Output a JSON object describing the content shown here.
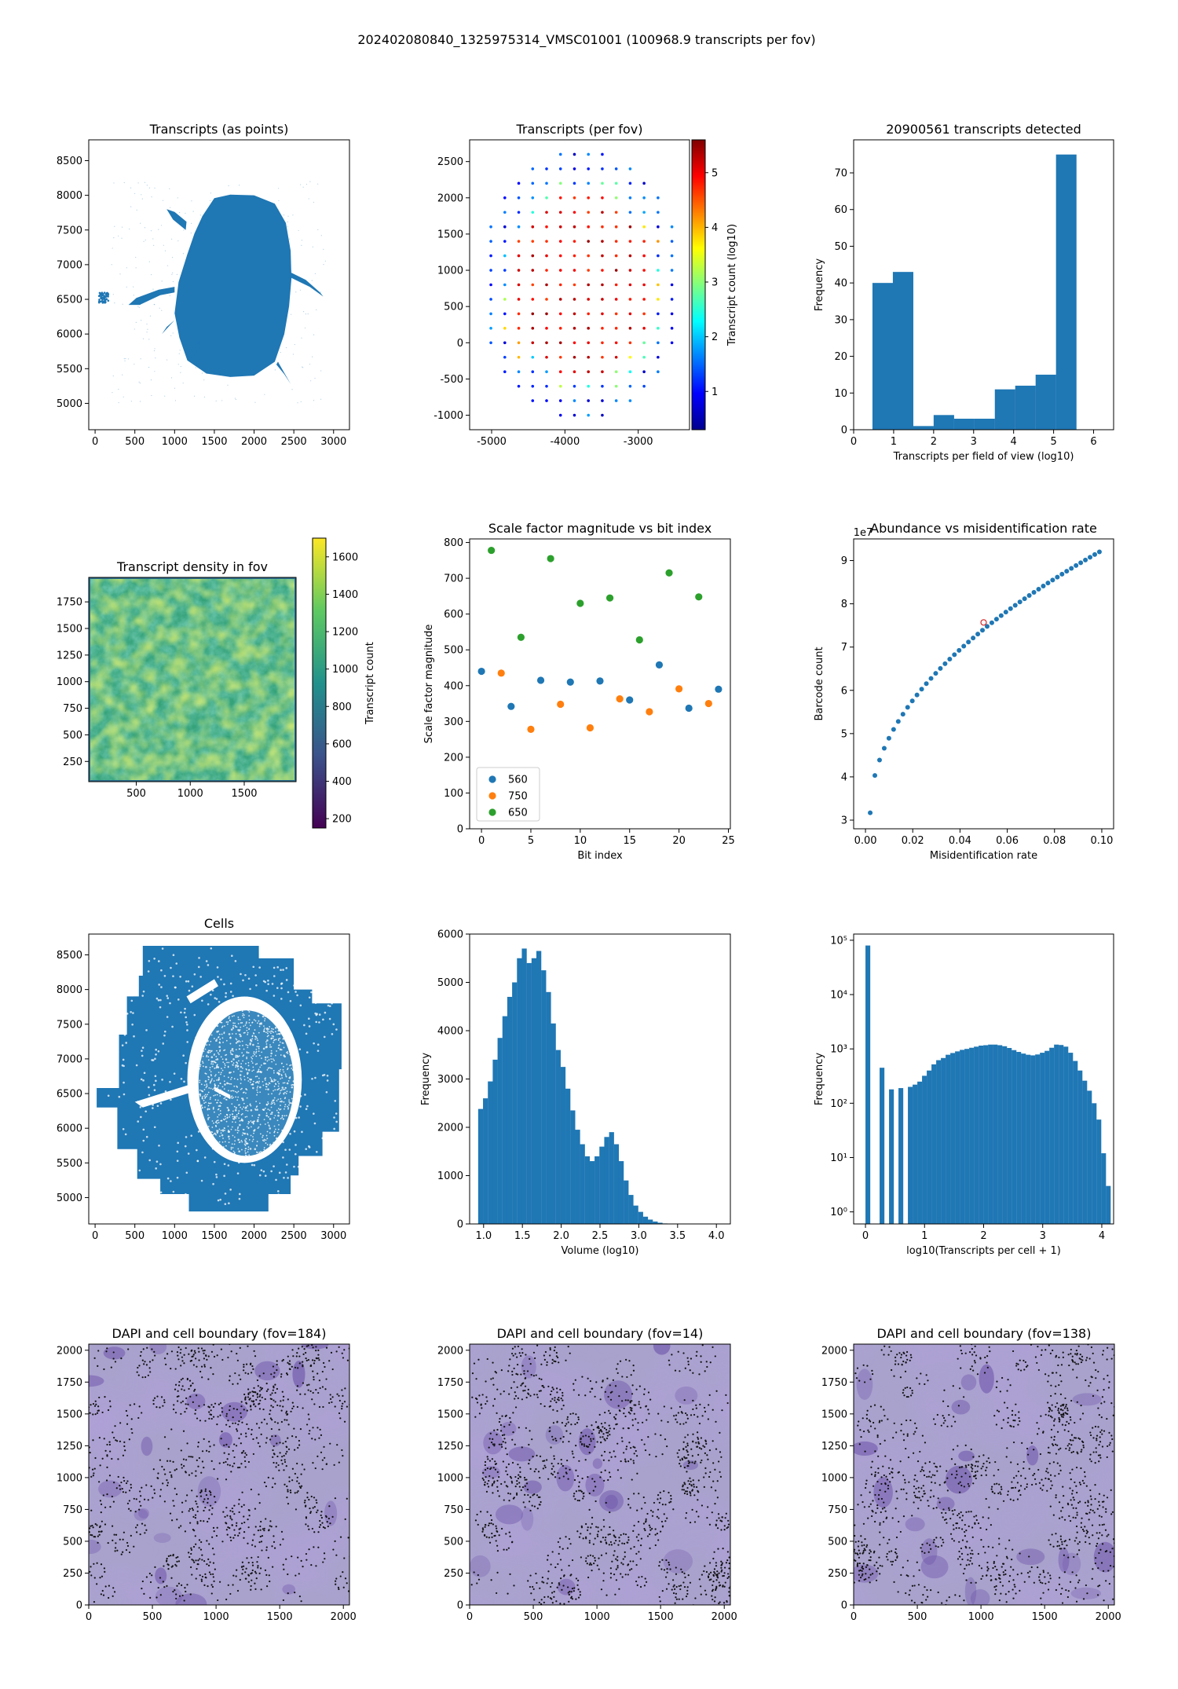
{
  "figure": {
    "suptitle": "202402080840_1325975314_VMSC01001 (100968.9 transcripts per fov)"
  },
  "colors": {
    "blue": "#1f77b4",
    "orange": "#ff7f0e",
    "green": "#2ca02c",
    "tissue_bg": "#a8a2cc",
    "nucleus": "#6a4fa8",
    "misid_marker": "#d62728"
  },
  "chart_data": [
    {
      "id": "transcripts-points",
      "type": "scatter",
      "title": "Transcripts (as points)",
      "xlabel": "",
      "ylabel": "",
      "xlim": [
        -80,
        3200
      ],
      "ylim": [
        4620,
        8800
      ],
      "xticks": [
        0,
        500,
        1000,
        1500,
        2000,
        2500,
        3000
      ],
      "yticks": [
        5000,
        5500,
        6000,
        6500,
        7000,
        7500,
        8000,
        8500
      ],
      "description_shape": "dense tissue blob centered near x=1750, y=6650"
    },
    {
      "id": "transcripts-per-fov",
      "type": "scatter",
      "title": "Transcripts (per fov)",
      "xlabel": "",
      "ylabel": "",
      "xlim": [
        -5300,
        -2300
      ],
      "ylim": [
        -1200,
        2800
      ],
      "xticks": [
        -5000,
        -4000,
        -3000
      ],
      "yticks": [
        -1000,
        -500,
        0,
        500,
        1000,
        1500,
        2000,
        2500
      ],
      "colorbar": {
        "label": "Transcript count (log10)",
        "min": 0.3,
        "max": 5.6,
        "ticks": [
          1,
          2,
          3,
          4,
          5
        ],
        "colormap": "jet"
      },
      "grid": {
        "x_start": -5000,
        "x_step": 190,
        "y_start": -1000,
        "y_step": 200,
        "rows": 18
      }
    },
    {
      "id": "transcripts-detected-hist",
      "type": "bar",
      "title": "20900561 transcripts detected",
      "xlabel": "Transcripts per field of view (log10)",
      "ylabel": "Frequency",
      "xlim": [
        0,
        6.5
      ],
      "ylim": [
        0,
        79
      ],
      "xticks": [
        0,
        1,
        2,
        3,
        4,
        5,
        6
      ],
      "yticks": [
        0,
        10,
        20,
        30,
        40,
        50,
        60,
        70
      ],
      "bin_edges": [
        0.47,
        0.98,
        1.49,
        2.0,
        2.51,
        3.02,
        3.53,
        4.04,
        4.55,
        5.06,
        5.57
      ],
      "values": [
        40,
        43,
        1,
        4,
        3,
        3,
        11,
        12,
        15,
        75
      ]
    },
    {
      "id": "transcript-density-fov",
      "type": "heatmap",
      "title": "Transcript density in fov",
      "xlabel": "",
      "ylabel": "",
      "xlim": [
        60,
        1980
      ],
      "ylim": [
        60,
        1980
      ],
      "xticks": [
        500,
        1000,
        1500
      ],
      "yticks": [
        250,
        500,
        750,
        1000,
        1250,
        1500,
        1750
      ],
      "colorbar": {
        "label": "Transcript count",
        "min": 150,
        "max": 1700,
        "ticks": [
          200,
          400,
          600,
          800,
          1000,
          1200,
          1400,
          1600
        ],
        "colormap": "viridis"
      }
    },
    {
      "id": "scale-factor",
      "type": "scatter",
      "title": "Scale factor magnitude vs bit index",
      "xlabel": "Bit index",
      "ylabel": "Scale factor magnitude",
      "xlim": [
        -1.2,
        25.2
      ],
      "ylim": [
        0,
        810
      ],
      "xticks": [
        0,
        5,
        10,
        15,
        20,
        25
      ],
      "yticks": [
        0,
        100,
        200,
        300,
        400,
        500,
        600,
        700,
        800
      ],
      "legend": {
        "placement": "lower left"
      },
      "series": [
        {
          "name": "560",
          "color": "#1f77b4",
          "x": [
            0,
            3,
            6,
            9,
            12,
            15,
            18,
            21,
            24
          ],
          "y": [
            440,
            342,
            415,
            410,
            413,
            360,
            458,
            337,
            390
          ]
        },
        {
          "name": "750",
          "color": "#ff7f0e",
          "x": [
            2,
            5,
            8,
            11,
            14,
            17,
            20,
            23
          ],
          "y": [
            435,
            278,
            348,
            282,
            363,
            327,
            391,
            350
          ]
        },
        {
          "name": "650",
          "color": "#2ca02c",
          "x": [
            1,
            4,
            7,
            10,
            13,
            16,
            19,
            22
          ],
          "y": [
            778,
            535,
            755,
            630,
            645,
            528,
            715,
            648
          ]
        }
      ]
    },
    {
      "id": "abundance-misid",
      "type": "scatter",
      "title": "Abundance vs misidentification rate",
      "xlabel": "Misidentification rate",
      "ylabel": "Barcode count",
      "offset_label": "1e7",
      "xlim": [
        -0.005,
        0.105
      ],
      "ylim": [
        2.8,
        9.5
      ],
      "xticks": [
        0.0,
        0.02,
        0.04,
        0.06,
        0.08,
        0.1
      ],
      "xtick_labels": [
        "0.00",
        "0.02",
        "0.04",
        "0.06",
        "0.08",
        "0.10"
      ],
      "yticks": [
        3,
        4,
        5,
        6,
        7,
        8,
        9
      ],
      "curve": {
        "x_start": 0.002,
        "x_end": 0.099,
        "points": 50,
        "y_at_start": 3.17,
        "y_at_end": 9.2
      },
      "highlight": {
        "x": 0.05,
        "y": 7.57
      }
    },
    {
      "id": "cells",
      "type": "scatter",
      "title": "Cells",
      "xlabel": "",
      "ylabel": "",
      "xlim": [
        -80,
        3200
      ],
      "ylim": [
        4620,
        8800
      ],
      "xticks": [
        0,
        500,
        1000,
        1500,
        2000,
        2500,
        3000
      ],
      "yticks": [
        5000,
        5500,
        6000,
        6500,
        7000,
        7500,
        8000,
        8500
      ]
    },
    {
      "id": "volume-hist",
      "type": "bar",
      "title": "",
      "xlabel": "Volume (log10)",
      "ylabel": "Frequency",
      "xlim": [
        0.82,
        4.18
      ],
      "ylim": [
        0,
        6000
      ],
      "xticks": [
        1.0,
        1.5,
        2.0,
        2.5,
        3.0,
        3.5,
        4.0
      ],
      "xtick_labels": [
        "1.0",
        "1.5",
        "2.0",
        "2.5",
        "3.0",
        "3.5",
        "4.0"
      ],
      "yticks": [
        0,
        1000,
        2000,
        3000,
        4000,
        5000,
        6000
      ],
      "bin_start": 0.93,
      "bin_width": 0.0625,
      "values": [
        2380,
        2600,
        2950,
        3400,
        3850,
        4300,
        4700,
        5000,
        5500,
        5700,
        5400,
        5500,
        5650,
        5250,
        4800,
        4150,
        3600,
        3250,
        2800,
        2350,
        1950,
        1650,
        1400,
        1300,
        1400,
        1600,
        1800,
        1900,
        1650,
        1300,
        900,
        600,
        380,
        250,
        150,
        90,
        50,
        25,
        10,
        4
      ]
    },
    {
      "id": "transcripts-per-cell-hist",
      "type": "bar",
      "title": "",
      "xlabel": "log10(Transcripts per cell + 1)",
      "ylabel": "Frequency",
      "log_y": true,
      "xlim": [
        -0.2,
        4.2
      ],
      "ylim": [
        0.6,
        130000
      ],
      "xticks": [
        0,
        1,
        2,
        3,
        4
      ],
      "yticks": [
        1,
        10,
        100,
        1000,
        10000,
        100000
      ],
      "ytick_labels": [
        "10⁰",
        "10¹",
        "10²",
        "10³",
        "10⁴",
        "10⁵"
      ],
      "bin_start": 0,
      "bin_width": 0.0798,
      "values": [
        80000,
        0,
        0,
        450,
        0,
        180,
        0,
        190,
        0,
        200,
        220,
        250,
        320,
        400,
        520,
        620,
        680,
        780,
        840,
        900,
        960,
        1000,
        1050,
        1100,
        1150,
        1170,
        1200,
        1200,
        1170,
        1120,
        1040,
        950,
        880,
        820,
        780,
        760,
        790,
        850,
        920,
        1050,
        1200,
        1180,
        1100,
        850,
        600,
        400,
        260,
        170,
        100,
        50,
        12,
        3
      ]
    },
    {
      "id": "dapi-184",
      "type": "heatmap",
      "title": "DAPI and cell boundary (fov=184)",
      "xlim": [
        0,
        2048
      ],
      "ylim": [
        0,
        2048
      ],
      "xticks": [
        0,
        500,
        1000,
        1500,
        2000
      ],
      "yticks": [
        0,
        250,
        500,
        750,
        1000,
        1250,
        1500,
        1750,
        2000
      ]
    },
    {
      "id": "dapi-14",
      "type": "heatmap",
      "title": "DAPI and cell boundary (fov=14)",
      "xlim": [
        0,
        2048
      ],
      "ylim": [
        0,
        2048
      ],
      "xticks": [
        0,
        500,
        1000,
        1500,
        2000
      ],
      "yticks": [
        0,
        250,
        500,
        750,
        1000,
        1250,
        1500,
        1750,
        2000
      ]
    },
    {
      "id": "dapi-138",
      "type": "heatmap",
      "title": "DAPI and cell boundary (fov=138)",
      "xlim": [
        0,
        2048
      ],
      "ylim": [
        0,
        2048
      ],
      "xticks": [
        0,
        500,
        1000,
        1500,
        2000
      ],
      "yticks": [
        0,
        250,
        500,
        750,
        1000,
        1250,
        1500,
        1750,
        2000
      ]
    }
  ]
}
